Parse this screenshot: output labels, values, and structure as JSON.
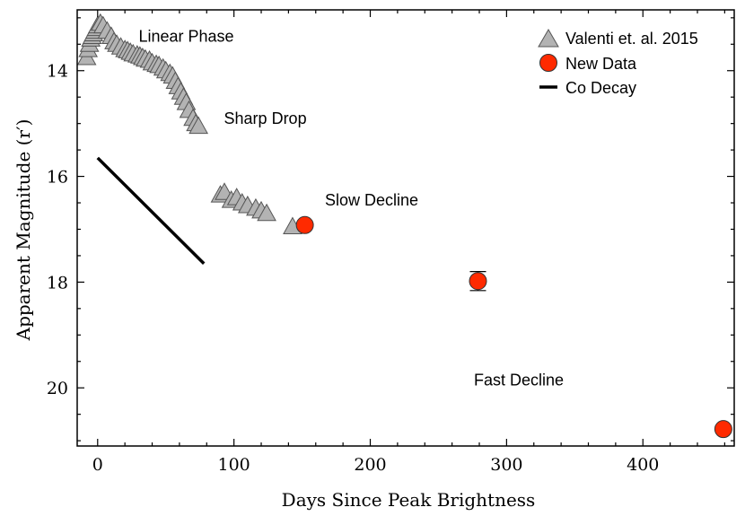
{
  "chart_data": {
    "type": "scatter",
    "xlabel": "Days Since Peak Brightness",
    "ylabel": "Apparent Magnitude (r′)",
    "xlim": [
      -15,
      467
    ],
    "ylim": [
      21.1,
      12.85
    ],
    "y_inverted": true,
    "x_ticks": [
      0,
      100,
      200,
      300,
      400
    ],
    "x_tick_labels": [
      "0",
      "100",
      "200",
      "300",
      "400"
    ],
    "y_ticks": [
      14,
      16,
      18,
      20
    ],
    "y_tick_labels": [
      "14",
      "16",
      "18",
      "20"
    ],
    "grid": false,
    "legend_position": "top-right",
    "series": [
      {
        "name": "Valenti et. al. 2015",
        "marker": "triangle",
        "color": "#b3b3b3",
        "x": [
          -8,
          -7,
          -6,
          -5,
          -4,
          -3,
          -2,
          -1,
          0,
          2,
          4,
          7,
          10,
          12,
          14,
          17,
          20,
          22,
          24,
          26,
          29,
          31,
          33,
          35,
          38,
          40,
          43,
          45,
          48,
          50,
          53,
          55,
          57,
          59,
          61,
          63,
          65,
          67,
          70,
          72,
          74,
          90,
          93,
          98,
          102,
          106,
          110,
          116,
          120,
          124,
          143
        ],
        "y": [
          13.75,
          13.6,
          13.5,
          13.4,
          13.35,
          13.3,
          13.25,
          13.2,
          13.15,
          13.1,
          13.15,
          13.25,
          13.35,
          13.45,
          13.5,
          13.55,
          13.6,
          13.62,
          13.65,
          13.68,
          13.7,
          13.72,
          13.75,
          13.78,
          13.8,
          13.85,
          13.88,
          13.9,
          13.95,
          14.0,
          14.05,
          14.1,
          14.2,
          14.3,
          14.4,
          14.5,
          14.6,
          14.75,
          14.9,
          15.0,
          15.05,
          16.35,
          16.3,
          16.45,
          16.4,
          16.5,
          16.55,
          16.6,
          16.65,
          16.7,
          16.95
        ]
      },
      {
        "name": "New Data",
        "marker": "circle",
        "color": "#ff2a00",
        "x": [
          152,
          279,
          459
        ],
        "y": [
          16.92,
          17.98,
          20.78
        ],
        "yerr": [
          0.05,
          0.18,
          0.05
        ]
      },
      {
        "name": "Co Decay",
        "marker": "line",
        "color": "#000000",
        "x": [
          0,
          78
        ],
        "y": [
          15.65,
          17.65
        ]
      }
    ],
    "annotations": [
      {
        "text": "Linear Phase",
        "x": 65,
        "y": 13.35
      },
      {
        "text": "Sharp Drop",
        "x": 123,
        "y": 14.9
      },
      {
        "text": "Slow Decline",
        "x": 201,
        "y": 16.45
      },
      {
        "text": "Fast Decline",
        "x": 309,
        "y": 19.85
      }
    ]
  }
}
